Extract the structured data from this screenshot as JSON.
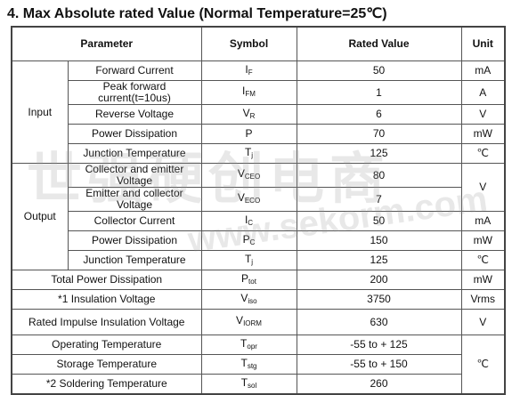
{
  "title": "4.  Max Absolute rated Value (Normal Temperature=25℃)",
  "watermark": {
    "brand": "世强硬创电商",
    "site": "www.sekorm.com"
  },
  "table": {
    "headers": [
      "Parameter",
      "Symbol",
      "Rated Value",
      "Unit"
    ],
    "groups": [
      {
        "label": "Input",
        "rows": [
          {
            "parameter": "Forward Current",
            "symbol": {
              "main": "I",
              "sub": "F"
            },
            "value": "50",
            "unit": "mA"
          },
          {
            "parameter": "Peak forward current(t=10us)",
            "symbol": {
              "main": "I",
              "sub": "FM"
            },
            "value": "1",
            "unit": "A"
          },
          {
            "parameter": "Reverse Voltage",
            "symbol": {
              "main": "V",
              "sub": "R"
            },
            "value": "6",
            "unit": "V"
          },
          {
            "parameter": "Power Dissipation",
            "symbol": {
              "main": "P"
            },
            "value": "70",
            "unit": "mW"
          },
          {
            "parameter": "Junction Temperature",
            "symbol": {
              "main": "T",
              "sub": "j"
            },
            "value": "125",
            "unit": "℃"
          }
        ]
      },
      {
        "label": "Output",
        "rows": [
          {
            "parameter": "Collector and emitter Voltage",
            "symbol": {
              "main": "V",
              "sub": "CEO"
            },
            "value": "80",
            "unit": "V"
          },
          {
            "parameter": "Emitter and collector Voltage",
            "symbol": {
              "main": "V",
              "sub": "ECO"
            },
            "value": "7"
          },
          {
            "parameter": "Collector Current",
            "symbol": {
              "main": "I",
              "sub": "C"
            },
            "value": "50",
            "unit": "mA"
          },
          {
            "parameter": "Power Dissipation",
            "symbol": {
              "main": "P",
              "sub": "C"
            },
            "value": "150",
            "unit": "mW"
          },
          {
            "parameter": "Junction Temperature",
            "symbol": {
              "main": "T",
              "sub": "j"
            },
            "value": "125",
            "unit": "℃"
          }
        ]
      },
      {
        "rows": [
          {
            "parameter": "Total Power Dissipation",
            "symbol": {
              "main": "P",
              "sub": "tot"
            },
            "value": "200",
            "unit": "mW"
          },
          {
            "parameter": "*1 Insulation Voltage",
            "symbol": {
              "main": "V",
              "sub": "iso"
            },
            "value": "3750",
            "unit": "Vrms"
          },
          {
            "parameter": "Rated Impulse Insulation Voltage",
            "symbol": {
              "main": "V",
              "sub": "IORM"
            },
            "value": "630",
            "unit": "V"
          },
          {
            "parameter": "Operating Temperature",
            "symbol": {
              "main": "T",
              "sub": "opr"
            },
            "value": "-55 to + 125",
            "unit": "℃"
          },
          {
            "parameter": "Storage Temperature",
            "symbol": {
              "main": "T",
              "sub": "stg"
            },
            "value": "-55 to + 150"
          },
          {
            "parameter": "*2 Soldering Temperature",
            "symbol": {
              "main": "T",
              "sub": "sol"
            },
            "value": "260"
          }
        ]
      }
    ]
  }
}
